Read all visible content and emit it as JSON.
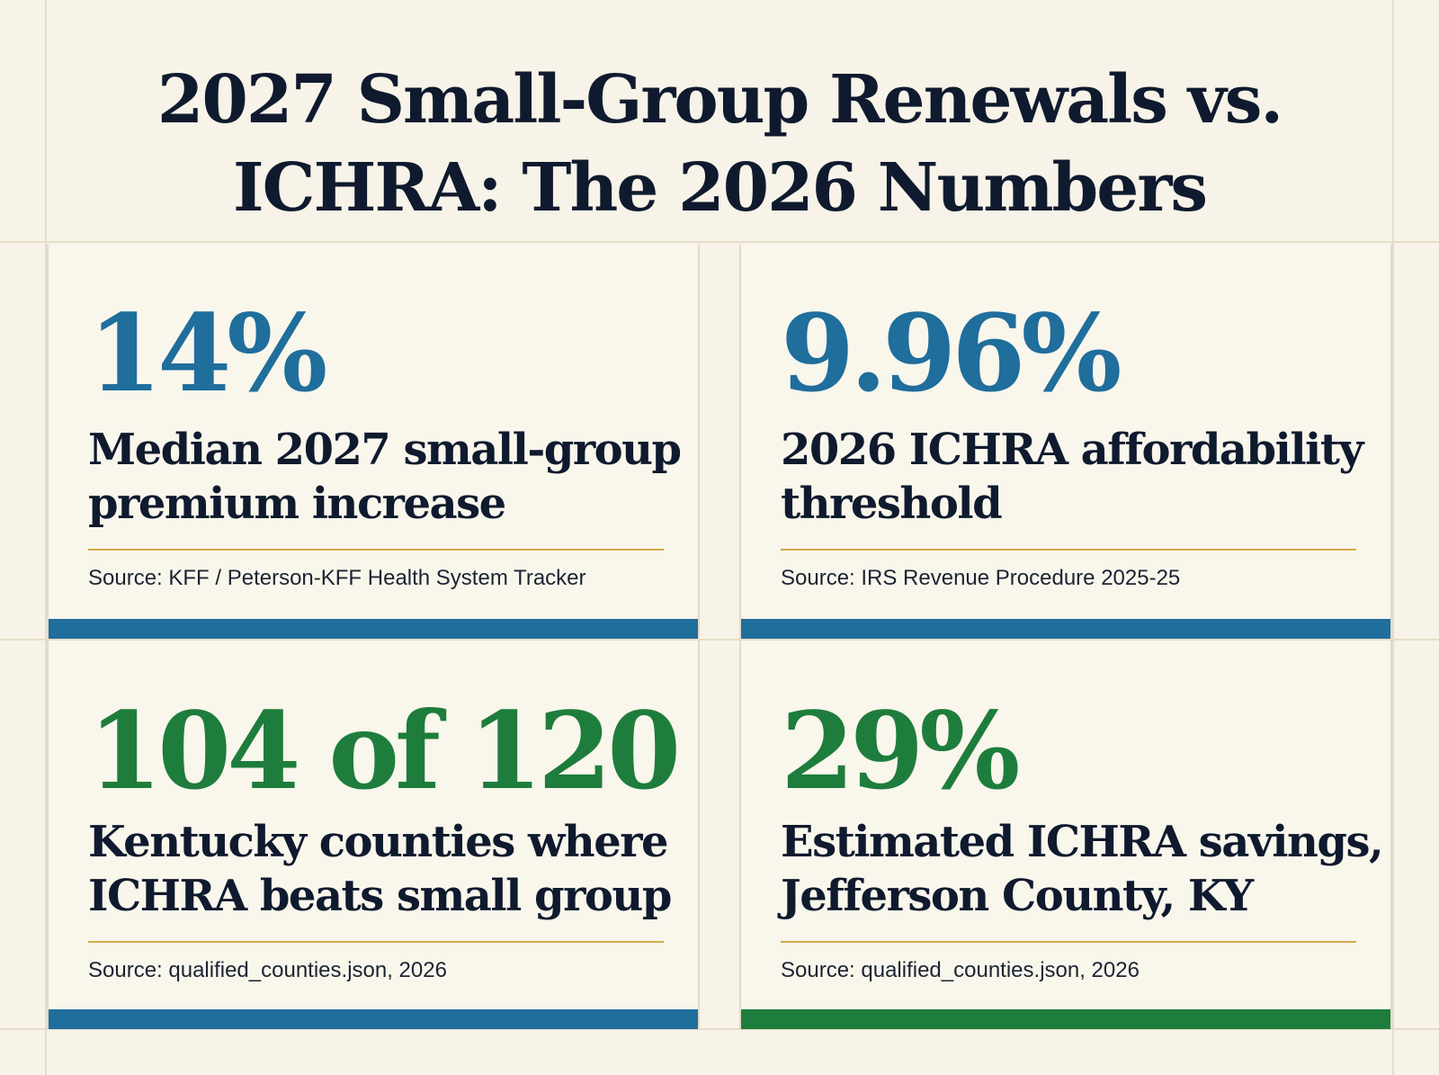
{
  "title": "2027 Small-Group Renewals vs. ICHRA: The 2026 Numbers",
  "colors": {
    "background": "#f7f3e8",
    "title": "#0f1a2e",
    "blue": "#1f6e9c",
    "green": "#1e7d3c",
    "rule_gold": "#d6a94a"
  },
  "stats": [
    {
      "value": "14%",
      "label": "Median 2027 small-group premium increase",
      "source": "Source: KFF / Peterson-KFF Health System Tracker",
      "value_color": "blue",
      "bar_color": "blue"
    },
    {
      "value": "9.96%",
      "label": "2026 ICHRA affordability threshold",
      "source": "Source: IRS Revenue Procedure 2025-25",
      "value_color": "blue",
      "bar_color": "blue"
    },
    {
      "value": "104 of 120",
      "label": "Kentucky counties where ICHRA beats small group",
      "source": "Source: qualified_counties.json, 2026",
      "value_color": "green",
      "bar_color": "blue"
    },
    {
      "value": "29%",
      "label": "Estimated ICHRA savings, Jefferson County, KY",
      "source": "Source: qualified_counties.json, 2026",
      "value_color": "green",
      "bar_color": "green"
    }
  ]
}
